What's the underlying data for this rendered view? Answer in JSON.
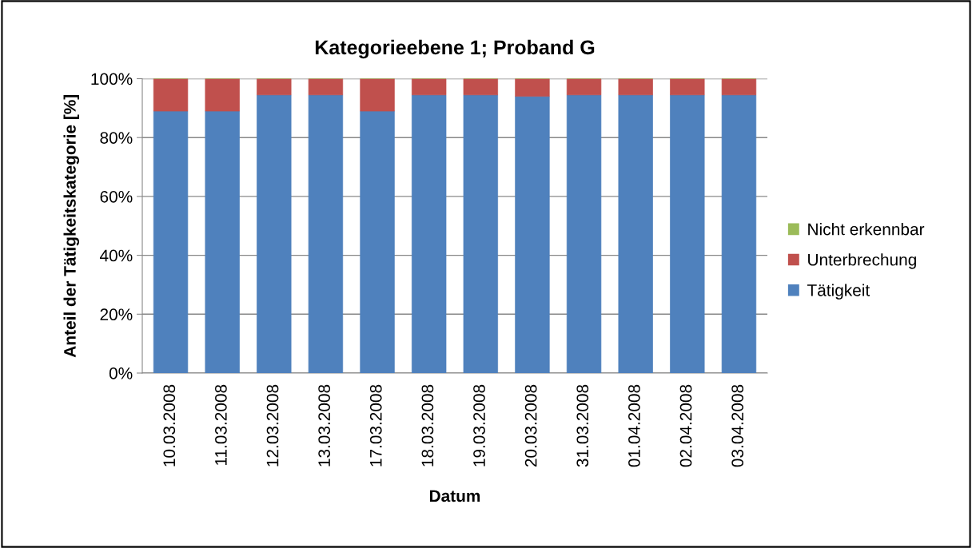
{
  "chart_data": {
    "type": "bar",
    "stacked": true,
    "title": "Kategorieebene 1; Proband G",
    "xlabel": "Datum",
    "ylabel": "Anteil der Tätigkeitskategorie [%]",
    "categories": [
      "10.03.2008",
      "11.03.2008",
      "12.03.2008",
      "13.03.2008",
      "17.03.2008",
      "18.03.2008",
      "19.03.2008",
      "20.03.2008",
      "31.03.2008",
      "01.04.2008",
      "02.04.2008",
      "03.04.2008"
    ],
    "series": [
      {
        "name": "Tätigkeit",
        "color": "#4f81bd",
        "values": [
          89,
          89,
          94.5,
          94.5,
          89,
          94.5,
          94.5,
          94,
          94.5,
          94.5,
          94.5,
          94.5
        ]
      },
      {
        "name": "Unterbrechung",
        "color": "#c0504d",
        "values": [
          11,
          11,
          5.5,
          5.5,
          11,
          5.5,
          5.5,
          6,
          5.5,
          5.5,
          5.5,
          5.5
        ]
      },
      {
        "name": "Nicht erkennbar",
        "color": "#9bbb59",
        "values": [
          0,
          0,
          0,
          0,
          0,
          0,
          0,
          0,
          0,
          0,
          0,
          0
        ]
      }
    ],
    "ylim": [
      0,
      100
    ],
    "yticks": [
      {
        "value": 0,
        "label": "0%"
      },
      {
        "value": 20,
        "label": "20%"
      },
      {
        "value": 40,
        "label": "40%"
      },
      {
        "value": 60,
        "label": "60%"
      },
      {
        "value": 80,
        "label": "80%"
      },
      {
        "value": 100,
        "label": "100%"
      }
    ],
    "grid": "y",
    "legend": "right"
  }
}
